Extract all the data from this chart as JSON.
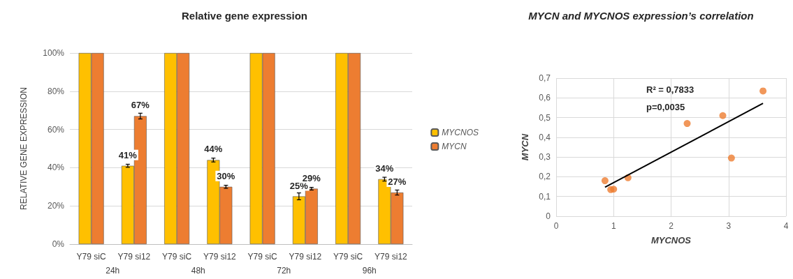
{
  "chart_data": [
    {
      "type": "bar",
      "title": "Relative gene expression",
      "ylabel": "RELATIVE GENE EXPRESSION",
      "categories": [
        "Y79 siC",
        "Y79 si12",
        "Y79 siC",
        "Y79 si12",
        "Y79 siC",
        "Y79 si12",
        "Y79 siC",
        "Y79 si12"
      ],
      "series": [
        {
          "name": "MYCNOS",
          "color": "#ffc000",
          "values": [
            100,
            41,
            100,
            44,
            100,
            25,
            100,
            34
          ],
          "errors": [
            null,
            0.8,
            null,
            1,
            null,
            1.8,
            null,
            1
          ],
          "value_labels": [
            null,
            "41%",
            null,
            "44%",
            null,
            "25%",
            null,
            "34%"
          ]
        },
        {
          "name": "MYCN",
          "color": "#ed7d31",
          "values": [
            100,
            67,
            100,
            30,
            100,
            29,
            100,
            27
          ],
          "errors": [
            null,
            1.5,
            null,
            0.8,
            null,
            0.7,
            null,
            1.3
          ],
          "value_labels": [
            null,
            "67%",
            null,
            "30%",
            null,
            "29%",
            null,
            "27%"
          ]
        }
      ],
      "annotations": [
        "24h",
        "48h",
        "72h",
        "96h"
      ],
      "ylim": [
        0,
        100
      ],
      "yticks": [
        {
          "value": 0,
          "label": "0%"
        },
        {
          "value": 20,
          "label": "20%"
        },
        {
          "value": 40,
          "label": "40%"
        },
        {
          "value": 60,
          "label": "60%"
        },
        {
          "value": 80,
          "label": "80%"
        },
        {
          "value": 100,
          "label": "100%"
        }
      ],
      "grid": "y",
      "legend": "right"
    },
    {
      "type": "scatter",
      "title": "MYCN and MYCNOS expression’s correlation",
      "xlabel": "MYCNOS",
      "ylabel": "MYCN",
      "series": [
        {
          "type": "scatter",
          "marker": "circle",
          "color": "#ed7d31",
          "x": [
            0.85,
            0.95,
            1.0,
            1.25,
            2.28,
            2.9,
            3.05,
            3.6
          ],
          "values": [
            0.18,
            0.135,
            0.137,
            0.195,
            0.47,
            0.51,
            0.295,
            0.635
          ]
        },
        {
          "type": "line",
          "marker": "none",
          "color": "#000000",
          "x": [
            0.85,
            3.6
          ],
          "values": [
            0.147,
            0.572
          ]
        }
      ],
      "annotations": [
        "R² = 0,7833",
        "p=0,0035"
      ],
      "xlim": [
        0,
        4
      ],
      "xticks": [
        0,
        1,
        2,
        3,
        4
      ],
      "ylim": [
        0,
        0.7
      ],
      "yticks": [
        0,
        {
          "value": 0.1,
          "label": "0,1"
        },
        {
          "value": 0.2,
          "label": "0,2"
        },
        {
          "value": 0.3,
          "label": "0,3"
        },
        {
          "value": 0.4,
          "label": "0,4"
        },
        {
          "value": 0.5,
          "label": "0,5"
        },
        {
          "value": 0.6,
          "label": "0,6"
        },
        {
          "value": 0.7,
          "label": "0,7"
        }
      ],
      "grid": true,
      "legend": false
    }
  ]
}
